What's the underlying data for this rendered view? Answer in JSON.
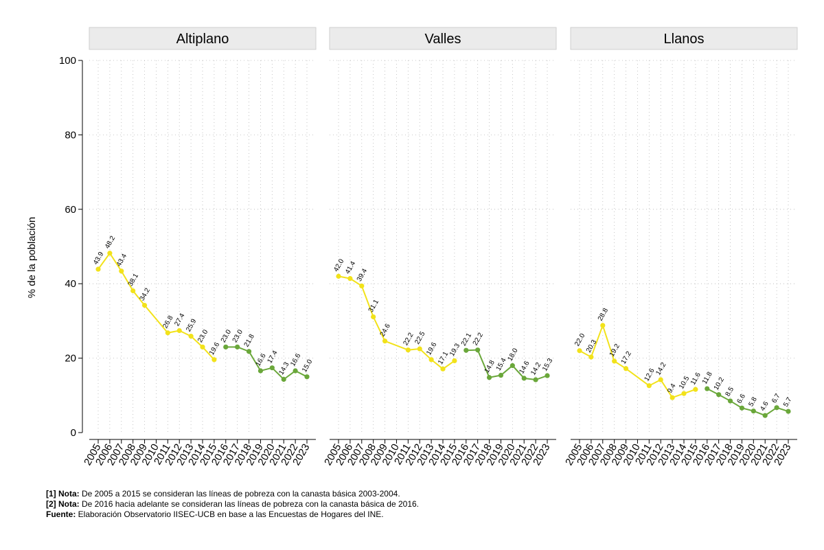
{
  "chart_data": {
    "type": "line",
    "ylabel": "% de la población",
    "ylim": [
      0,
      100
    ],
    "yticks": [
      0,
      20,
      40,
      60,
      80,
      100
    ],
    "years": [
      "2005",
      "2006",
      "2007",
      "2008",
      "2009",
      "2010",
      "2011",
      "2012",
      "2013",
      "2014",
      "2015",
      "2016",
      "2017",
      "2018",
      "2019",
      "2020",
      "2021",
      "2022",
      "2023"
    ],
    "series_colors": {
      "canasta_2003_2004": "#f2e21a",
      "canasta_2016": "#6aa73a"
    },
    "panels": [
      {
        "title": "Altiplano",
        "series": [
          {
            "name": "canasta_2003_2004",
            "x": [
              2005,
              2006,
              2007,
              2008,
              2009,
              2011,
              2012,
              2013,
              2014,
              2015
            ],
            "values": [
              43.9,
              48.2,
              43.4,
              38.1,
              34.2,
              26.8,
              27.4,
              25.9,
              23.0,
              19.6
            ],
            "labels": [
              "43.9",
              "48.2",
              "43.4",
              "38.1",
              "34.2",
              "26.8",
              "27.4",
              "25.9",
              "23.0",
              "19.6"
            ]
          },
          {
            "name": "canasta_2016",
            "x": [
              2016,
              2017,
              2018,
              2019,
              2020,
              2021,
              2022,
              2023
            ],
            "values": [
              23.0,
              23.0,
              21.8,
              16.6,
              17.4,
              14.3,
              16.6,
              15.0
            ],
            "labels": [
              "23.0",
              "23.0",
              "21.8",
              "16.6",
              "17.4",
              "14.3",
              "16.6",
              "15.0"
            ]
          }
        ]
      },
      {
        "title": "Valles",
        "series": [
          {
            "name": "canasta_2003_2004",
            "x": [
              2005,
              2006,
              2007,
              2008,
              2009,
              2011,
              2012,
              2013,
              2014,
              2015
            ],
            "values": [
              42.0,
              41.4,
              39.4,
              31.1,
              24.6,
              22.2,
              22.5,
              19.6,
              17.1,
              19.3
            ],
            "labels": [
              "42.0",
              "41.4",
              "39.4",
              "31.1",
              "24.6",
              "22.2",
              "22.5",
              "19.6",
              "17.1",
              "19.3"
            ]
          },
          {
            "name": "canasta_2016",
            "x": [
              2016,
              2017,
              2018,
              2019,
              2020,
              2021,
              2022,
              2023
            ],
            "values": [
              22.1,
              22.2,
              14.8,
              15.4,
              18.0,
              14.6,
              14.2,
              15.3
            ],
            "labels": [
              "22.1",
              "22.2",
              "14.8",
              "15.4",
              "18.0",
              "14.6",
              "14.2",
              "15.3"
            ]
          }
        ]
      },
      {
        "title": "Llanos",
        "series": [
          {
            "name": "canasta_2003_2004",
            "x": [
              2005,
              2006,
              2007,
              2008,
              2009,
              2011,
              2012,
              2013,
              2014,
              2015
            ],
            "values": [
              22.0,
              20.3,
              28.8,
              19.2,
              17.2,
              12.6,
              14.2,
              9.4,
              10.5,
              11.6
            ],
            "labels": [
              "22.0",
              "20.3",
              "28.8",
              "19.2",
              "17.2",
              "12.6",
              "14.2",
              "9.4",
              "10.5",
              "11.6"
            ]
          },
          {
            "name": "canasta_2016",
            "x": [
              2016,
              2017,
              2018,
              2019,
              2020,
              2021,
              2022,
              2023
            ],
            "values": [
              11.8,
              10.2,
              8.5,
              6.6,
              5.8,
              4.6,
              6.7,
              5.7
            ],
            "labels": [
              "11.8",
              "10.2",
              "8.5",
              "6.6",
              "5.8",
              "4.6",
              "6.7",
              "5.7"
            ]
          }
        ]
      }
    ]
  },
  "notes": {
    "note1_tag": "[1] Nota:",
    "note1_text": " De 2005 a 2015 se consideran las líneas de pobreza con la canasta básica 2003-2004.",
    "note2_tag": "[2] Nota:",
    "note2_text": " De 2016 hacia adelante se consideran las líneas de pobreza con la canasta básica de 2016.",
    "source_tag": "Fuente:",
    "source_text": " Elaboración Observatorio IISEC-UCB en base a las Encuestas de Hogares del INE."
  }
}
